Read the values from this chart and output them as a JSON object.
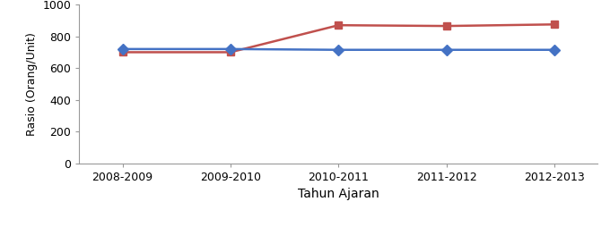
{
  "x_labels": [
    "2008-2009",
    "2009-2010",
    "2010-2011",
    "2011-2012",
    "2012-2013"
  ],
  "x_values": [
    0,
    1,
    2,
    3,
    4
  ],
  "blue_values": [
    720,
    720,
    715,
    715,
    715
  ],
  "red_values": [
    700,
    700,
    870,
    865,
    875
  ],
  "blue_color": "#4472C4",
  "red_color": "#C0504D",
  "xlabel": "Tahun Ajaran",
  "ylabel": "Rasio (Orang/Unit)",
  "ylim": [
    0,
    1000
  ],
  "yticks": [
    0,
    200,
    400,
    600,
    800,
    1000
  ],
  "blue_marker": "D",
  "red_marker": "s",
  "marker_size": 6,
  "linewidth": 1.8,
  "xlabel_fontsize": 10,
  "ylabel_fontsize": 9,
  "tick_fontsize": 9
}
